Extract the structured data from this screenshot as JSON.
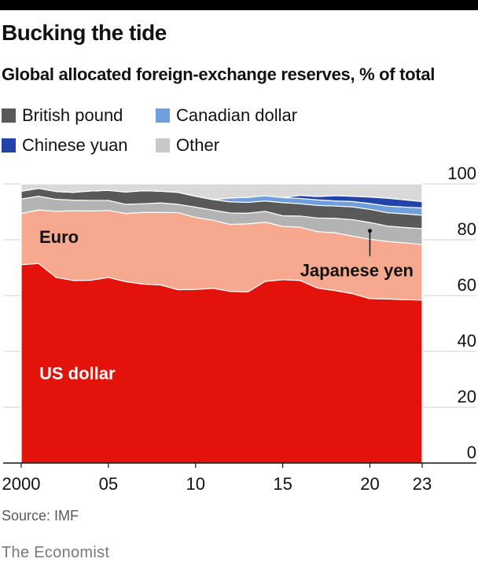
{
  "header": {
    "title": "Bucking the tide",
    "subtitle": "Global allocated foreign-exchange reserves, % of total"
  },
  "legend": [
    {
      "label": "British pound",
      "color": "#595959"
    },
    {
      "label": "Canadian dollar",
      "color": "#6f9fdc"
    },
    {
      "label": "Chinese yuan",
      "color": "#2243a8"
    },
    {
      "label": "Other",
      "color": "#c8c8c8"
    }
  ],
  "footer": {
    "source": "Source: IMF",
    "brand": "The Economist"
  },
  "chart_data": {
    "type": "area",
    "stacked": true,
    "x": [
      2000,
      2001,
      2002,
      2003,
      2004,
      2005,
      2006,
      2007,
      2008,
      2009,
      2010,
      2011,
      2012,
      2013,
      2014,
      2015,
      2016,
      2017,
      2018,
      2019,
      2020,
      2021,
      2022,
      2023
    ],
    "x_tick_labels": [
      {
        "x": 2000,
        "label": "2000"
      },
      {
        "x": 2005,
        "label": "05"
      },
      {
        "x": 2010,
        "label": "10"
      },
      {
        "x": 2015,
        "label": "15"
      },
      {
        "x": 2020,
        "label": "20"
      },
      {
        "x": 2023,
        "label": "23"
      }
    ],
    "y_ticks": [
      0,
      20,
      40,
      60,
      80,
      100
    ],
    "ylim": [
      0,
      100
    ],
    "grid": true,
    "series": [
      {
        "name": "US dollar",
        "color": "#e3120b",
        "values": [
          71.1,
          71.5,
          66.5,
          65.4,
          65.5,
          66.5,
          65.0,
          64.1,
          63.8,
          62.1,
          62.2,
          62.6,
          61.5,
          61.3,
          65.1,
          65.7,
          65.4,
          62.7,
          61.8,
          60.7,
          58.9,
          58.8,
          58.5,
          58.4
        ]
      },
      {
        "name": "Euro",
        "color": "#f6a98e",
        "values": [
          18.3,
          19.2,
          23.7,
          25.0,
          24.8,
          24.0,
          24.4,
          25.7,
          26.0,
          27.6,
          25.8,
          24.4,
          24.0,
          24.4,
          21.2,
          19.1,
          19.1,
          20.2,
          20.7,
          20.6,
          21.3,
          20.6,
          20.4,
          19.9
        ]
      },
      {
        "name": "Japanese yen",
        "color": "#b3b3b3",
        "values": [
          5.2,
          4.9,
          4.3,
          3.8,
          3.8,
          3.6,
          3.3,
          3.1,
          3.4,
          3.0,
          3.7,
          3.6,
          4.1,
          3.8,
          3.9,
          3.8,
          4.0,
          4.9,
          5.2,
          5.9,
          6.0,
          5.5,
          5.5,
          5.7
        ]
      },
      {
        "name": "British pound",
        "color": "#595959",
        "values": [
          2.8,
          2.8,
          2.8,
          2.8,
          3.4,
          3.6,
          4.4,
          4.7,
          4.2,
          4.3,
          3.9,
          3.8,
          4.0,
          3.9,
          3.7,
          4.7,
          4.4,
          4.5,
          4.4,
          4.6,
          4.7,
          4.8,
          4.9,
          4.8
        ]
      },
      {
        "name": "Canadian dollar",
        "color": "#6f9fdc",
        "values": [
          0,
          0,
          0,
          0,
          0,
          0,
          0,
          0,
          0,
          0,
          0,
          0,
          1.4,
          1.8,
          1.9,
          1.8,
          1.9,
          2.0,
          1.8,
          1.9,
          2.1,
          2.4,
          2.4,
          2.6
        ]
      },
      {
        "name": "Chinese yuan",
        "color": "#2243a8",
        "values": [
          0,
          0,
          0,
          0,
          0,
          0,
          0,
          0,
          0,
          0,
          0,
          0,
          0,
          0,
          0,
          0,
          1.1,
          1.2,
          1.9,
          1.9,
          2.3,
          2.8,
          2.6,
          2.3
        ]
      },
      {
        "name": "Other",
        "color": "#d9d9d9",
        "values": [
          2.6,
          1.6,
          2.7,
          3.0,
          2.5,
          2.3,
          2.9,
          2.4,
          2.6,
          3.0,
          4.4,
          5.6,
          5.0,
          4.8,
          4.2,
          4.9,
          4.1,
          4.5,
          4.2,
          4.4,
          4.7,
          5.1,
          5.7,
          6.3
        ]
      }
    ],
    "annotations": [
      {
        "series": "US dollar",
        "label": "US dollar"
      },
      {
        "series": "Euro",
        "label": "Euro"
      },
      {
        "series": "Japanese yen",
        "label": "Japanese yen"
      }
    ]
  }
}
